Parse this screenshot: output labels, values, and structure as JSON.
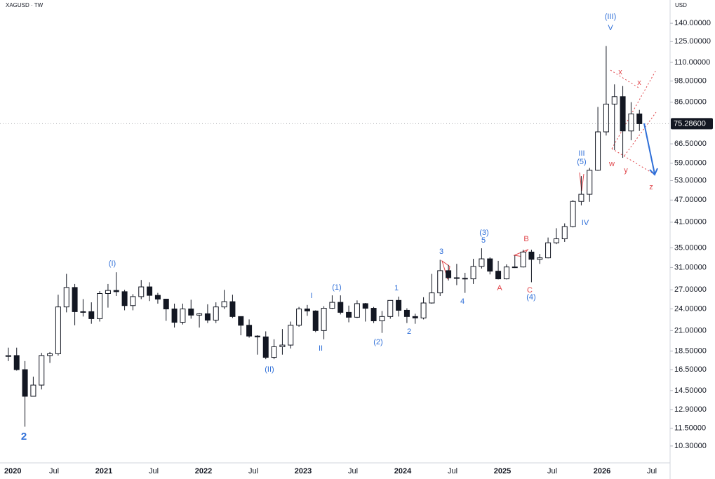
{
  "chart_data": {
    "type": "candlestick",
    "title": "XAGUSD · TW",
    "currency": "USD",
    "log_scale": true,
    "up_color": "#ffffff",
    "down_color": "#131722",
    "ylim": [
      9.28,
      161.6
    ],
    "yticks": [
      {
        "value": 140,
        "label": "140.00000"
      },
      {
        "value": 125,
        "label": "125.00000"
      },
      {
        "value": 110,
        "label": "110.00000"
      },
      {
        "value": 98,
        "label": "98.00000"
      },
      {
        "value": 86,
        "label": "86.00000"
      },
      {
        "value": 66.5,
        "label": "66.50000"
      },
      {
        "value": 59,
        "label": "59.00000"
      },
      {
        "value": 53,
        "label": "53.00000"
      },
      {
        "value": 47,
        "label": "47.00000"
      },
      {
        "value": 41,
        "label": "41.00000"
      },
      {
        "value": 35,
        "label": "35.00000"
      },
      {
        "value": 31,
        "label": "31.00000"
      },
      {
        "value": 27,
        "label": "27.00000"
      },
      {
        "value": 24,
        "label": "24.00000"
      },
      {
        "value": 21,
        "label": "21.00000"
      },
      {
        "value": 18.5,
        "label": "18.50000"
      },
      {
        "value": 16.5,
        "label": "16.50000"
      },
      {
        "value": 14.5,
        "label": "14.50000"
      },
      {
        "value": 12.9,
        "label": "12.90000"
      },
      {
        "value": 11.5,
        "label": "11.50000"
      },
      {
        "value": 10.3,
        "label": "10.30000"
      }
    ],
    "last_price": {
      "value": 75.286,
      "label": "75.28600"
    },
    "xticks": [
      {
        "value": "2020-01",
        "label": "2020"
      },
      {
        "value": "2020-07",
        "label": "Jul"
      },
      {
        "value": "2021-01",
        "label": "2021"
      },
      {
        "value": "2021-07",
        "label": "Jul"
      },
      {
        "value": "2022-01",
        "label": "2022"
      },
      {
        "value": "2022-07",
        "label": "Jul"
      },
      {
        "value": "2023-01",
        "label": "2023"
      },
      {
        "value": "2023-07",
        "label": "Jul"
      },
      {
        "value": "2024-01",
        "label": "2024"
      },
      {
        "value": "2024-07",
        "label": "Jul"
      },
      {
        "value": "2025-01",
        "label": "2025"
      },
      {
        "value": "2025-07",
        "label": "Jul"
      },
      {
        "value": "2026-01",
        "label": "2026"
      },
      {
        "value": "2026-07",
        "label": "Jul"
      }
    ],
    "x": [
      "2020-01",
      "2020-02",
      "2020-03",
      "2020-04",
      "2020-05",
      "2020-06",
      "2020-07",
      "2020-08",
      "2020-09",
      "2020-10",
      "2020-11",
      "2020-12",
      "2021-01",
      "2021-02",
      "2021-03",
      "2021-04",
      "2021-05",
      "2021-06",
      "2021-07",
      "2021-08",
      "2021-09",
      "2021-10",
      "2021-11",
      "2021-12",
      "2022-01",
      "2022-02",
      "2022-03",
      "2022-04",
      "2022-05",
      "2022-06",
      "2022-07",
      "2022-08",
      "2022-09",
      "2022-10",
      "2022-11",
      "2022-12",
      "2023-01",
      "2023-02",
      "2023-03",
      "2023-04",
      "2023-05",
      "2023-06",
      "2023-07",
      "2023-08",
      "2023-09",
      "2023-10",
      "2023-11",
      "2023-12",
      "2024-01",
      "2024-02",
      "2024-03",
      "2024-04",
      "2024-05",
      "2024-06",
      "2024-07",
      "2024-08",
      "2024-09",
      "2024-10",
      "2024-11",
      "2024-12",
      "2025-01",
      "2025-02",
      "2025-03",
      "2025-04",
      "2025-05",
      "2025-06",
      "2025-07",
      "2025-08",
      "2025-09",
      "2025-10",
      "2025-11",
      "2025-12",
      "2026-01",
      "2026-02",
      "2026-03",
      "2026-04",
      "2026-05"
    ],
    "open": [
      17.9,
      18.0,
      16.5,
      14.0,
      15.0,
      18.0,
      18.2,
      24.3,
      27.4,
      23.6,
      23.6,
      22.6,
      26.4,
      26.9,
      26.7,
      24.5,
      25.9,
      27.5,
      26.1,
      25.5,
      24.0,
      22.1,
      24.0,
      23.1,
      23.3,
      22.4,
      24.3,
      25.1,
      22.9,
      21.7,
      20.3,
      20.2,
      17.8,
      19.0,
      19.2,
      21.7,
      24.0,
      23.7,
      21.0,
      24.1,
      25.0,
      23.5,
      22.8,
      24.8,
      24.1,
      22.3,
      22.9,
      25.3,
      23.8,
      22.9,
      22.7,
      24.9,
      26.5,
      30.4,
      29.1,
      29.0,
      28.9,
      31.2,
      32.7,
      30.3,
      28.9,
      31.1,
      31.1,
      34.1,
      32.6,
      32.9,
      36.1,
      37.0,
      39.9,
      46.6,
      48.7,
      56.5,
      71.6,
      85.0,
      89.0,
      72.0,
      80.0
    ],
    "high": [
      18.9,
      18.9,
      17.4,
      15.8,
      18.3,
      18.4,
      26.2,
      29.8,
      28.0,
      25.5,
      25.0,
      26.8,
      28.0,
      30.1,
      27.0,
      26.3,
      28.7,
      28.3,
      26.5,
      25.5,
      24.8,
      24.8,
      25.4,
      23.4,
      24.7,
      25.0,
      27.0,
      26.2,
      22.9,
      22.5,
      20.4,
      20.9,
      19.9,
      21.2,
      22.2,
      24.3,
      24.6,
      23.8,
      24.4,
      26.1,
      26.1,
      24.5,
      25.3,
      24.9,
      24.3,
      23.7,
      25.3,
      25.9,
      24.1,
      23.3,
      25.8,
      29.8,
      32.5,
      31.5,
      31.7,
      30.0,
      32.7,
      34.9,
      33.0,
      32.3,
      31.6,
      33.4,
      34.6,
      34.6,
      33.7,
      37.3,
      39.5,
      40.7,
      47.0,
      54.5,
      57.3,
      83.5,
      121.6,
      96.0,
      95.0,
      86.0,
      82.0
    ],
    "low": [
      17.4,
      16.4,
      11.6,
      14.0,
      14.6,
      17.2,
      18.0,
      23.5,
      21.7,
      22.9,
      21.9,
      22.2,
      24.2,
      26.0,
      23.8,
      23.8,
      25.5,
      25.2,
      24.8,
      22.3,
      21.4,
      21.8,
      22.6,
      21.4,
      22.0,
      22.0,
      24.0,
      22.7,
      20.4,
      20.1,
      18.1,
      17.6,
      17.6,
      18.1,
      18.8,
      21.5,
      23.0,
      20.8,
      19.9,
      24.0,
      23.2,
      22.1,
      22.7,
      22.2,
      22.0,
      20.7,
      22.6,
      22.9,
      22.0,
      21.9,
      22.5,
      24.8,
      26.0,
      28.6,
      27.8,
      26.5,
      28.0,
      30.8,
      29.7,
      28.8,
      28.8,
      30.9,
      31.0,
      28.3,
      31.7,
      32.8,
      35.8,
      36.3,
      39.7,
      45.5,
      46.5,
      56.3,
      70.0,
      64.0,
      61.0,
      68.0,
      72.0
    ],
    "close": [
      18.0,
      16.5,
      14.0,
      15.0,
      18.0,
      18.2,
      24.3,
      27.4,
      23.6,
      23.6,
      22.6,
      26.4,
      26.9,
      26.7,
      24.5,
      25.9,
      27.5,
      26.1,
      25.5,
      24.0,
      22.1,
      24.0,
      23.1,
      23.3,
      22.4,
      24.3,
      25.1,
      22.9,
      21.7,
      20.3,
      20.2,
      17.8,
      19.0,
      19.2,
      21.7,
      24.0,
      23.7,
      21.0,
      24.1,
      25.0,
      23.5,
      22.8,
      24.8,
      24.1,
      22.3,
      22.9,
      25.3,
      23.8,
      22.9,
      22.7,
      24.9,
      26.5,
      30.4,
      29.1,
      29.0,
      28.9,
      31.2,
      32.7,
      30.3,
      28.9,
      31.1,
      31.1,
      34.1,
      32.6,
      32.9,
      36.1,
      37.0,
      39.9,
      46.6,
      48.7,
      56.5,
      71.6,
      85.0,
      89.0,
      72.0,
      80.0,
      75.286
    ],
    "annotations": [
      {
        "text": "2",
        "color": "#2f6fd8"
      },
      {
        "text": "(I)",
        "color": "#2f6fd8"
      },
      {
        "text": "(II)",
        "color": "#2f6fd8"
      },
      {
        "text": "I",
        "color": "#2f6fd8"
      },
      {
        "text": "II",
        "color": "#2f6fd8"
      },
      {
        "text": "(1)",
        "color": "#2f6fd8"
      },
      {
        "text": "(2)",
        "color": "#2f6fd8"
      },
      {
        "text": "1",
        "color": "#2f6fd8"
      },
      {
        "text": "2",
        "color": "#2f6fd8"
      },
      {
        "text": "3",
        "color": "#2f6fd8"
      },
      {
        "text": "4",
        "color": "#2f6fd8"
      },
      {
        "text": "(3)",
        "color": "#2f6fd8"
      },
      {
        "text": "5",
        "color": "#2f6fd8"
      },
      {
        "text": "A",
        "color": "#e0454a"
      },
      {
        "text": "B",
        "color": "#e0454a"
      },
      {
        "text": "C",
        "color": "#e0454a"
      },
      {
        "text": "(4)",
        "color": "#2f6fd8"
      },
      {
        "text": "III",
        "color": "#2f6fd8"
      },
      {
        "text": "(5)",
        "color": "#2f6fd8"
      },
      {
        "text": "IV",
        "color": "#2f6fd8"
      },
      {
        "text": "(III)",
        "color": "#2f6fd8"
      },
      {
        "text": "V",
        "color": "#2f6fd8"
      },
      {
        "text": "x",
        "color": "#e0454a"
      },
      {
        "text": "x",
        "color": "#e0454a"
      },
      {
        "text": "w",
        "color": "#e0454a"
      },
      {
        "text": "y",
        "color": "#e0454a"
      },
      {
        "text": "z",
        "color": "#e0454a"
      }
    ]
  }
}
